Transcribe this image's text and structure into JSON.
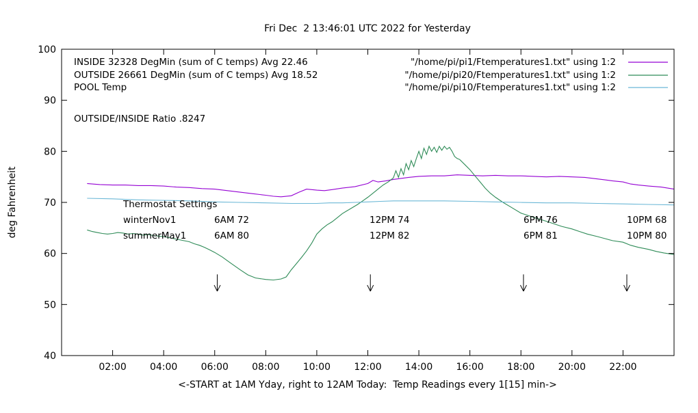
{
  "title": "Fri Dec  2 13:46:01 UTC 2022 for Yesterday",
  "legend": {
    "rows": [
      {
        "label": "INSIDE 32328 DegMin (sum of C temps) Avg 22.46",
        "file": "\"/home/pi/pi1/Ftemperatures1.txt\" using 1:2",
        "color": "#9400d3"
      },
      {
        "label": "OUTSIDE 26661 DegMin (sum of C temps) Avg 18.52",
        "file": "\"/home/pi/pi20/Ftemperatures1.txt\" using 1:2",
        "color": "#2e8b57"
      },
      {
        "label": "POOL Temp",
        "file": "\"/home/pi/pi10/Ftemperatures1.txt\" using 1:2",
        "color": "#6ab7d6"
      }
    ]
  },
  "ratio_text": "OUTSIDE/INSIDE Ratio .8247",
  "thermostat": {
    "title": "Thermostat Settings",
    "rows": [
      {
        "label": "winterNov1",
        "cols": [
          "6AM 72",
          "12PM 74",
          "6PM 76",
          "10PM 68"
        ]
      },
      {
        "label": "summerMay1",
        "cols": [
          "6AM 80",
          "12PM 82",
          "6PM 81",
          "10PM 80"
        ]
      }
    ]
  },
  "axes": {
    "y_label": "deg Fahrenheit",
    "x_label": "<-START at 1AM Yday, right to 12AM Today:  Temp Readings every 1[15] min->",
    "y_ticks": [
      40,
      50,
      60,
      70,
      80,
      90,
      100
    ],
    "x_ticks": [
      {
        "label": "02:00",
        "hour": 2
      },
      {
        "label": "04:00",
        "hour": 4
      },
      {
        "label": "06:00",
        "hour": 6
      },
      {
        "label": "08:00",
        "hour": 8
      },
      {
        "label": "10:00",
        "hour": 10
      },
      {
        "label": "12:00",
        "hour": 12
      },
      {
        "label": "14:00",
        "hour": 14
      },
      {
        "label": "16:00",
        "hour": 16
      },
      {
        "label": "18:00",
        "hour": 18
      },
      {
        "label": "20:00",
        "hour": 20
      },
      {
        "label": "22:00",
        "hour": 22
      }
    ]
  },
  "chart_data": {
    "type": "line",
    "title": "Fri Dec  2 13:46:01 UTC 2022 for Yesterday",
    "xlabel": "<-START at 1AM Yday, right to 12AM Today:  Temp Readings every 1[15] min->",
    "ylabel": "deg Fahrenheit",
    "x_unit": "hour of day (1AM yesterday to 12AM today)",
    "xlim": [
      0,
      24
    ],
    "ylim": [
      40,
      100
    ],
    "grid": false,
    "legend_position": "top-left-inside",
    "arrow_hours": [
      6.1,
      12.1,
      18.1,
      22.15
    ],
    "arrow_y_top_deg": 55.9,
    "arrow_y_tip_deg": 52.6,
    "series": [
      {
        "name": "INSIDE",
        "color": "#9400d3",
        "points": [
          [
            1,
            73.7
          ],
          [
            1.5,
            73.5
          ],
          [
            2,
            73.4
          ],
          [
            2.5,
            73.4
          ],
          [
            3,
            73.3
          ],
          [
            3.5,
            73.3
          ],
          [
            4,
            73.2
          ],
          [
            4.5,
            73
          ],
          [
            5,
            72.9
          ],
          [
            5.5,
            72.7
          ],
          [
            6,
            72.6
          ],
          [
            6.5,
            72.3
          ],
          [
            7,
            72
          ],
          [
            7.5,
            71.7
          ],
          [
            8,
            71.4
          ],
          [
            8.3,
            71.2
          ],
          [
            8.6,
            71.1
          ],
          [
            9,
            71.3
          ],
          [
            9.3,
            72
          ],
          [
            9.6,
            72.6
          ],
          [
            10,
            72.4
          ],
          [
            10.3,
            72.3
          ],
          [
            10.6,
            72.5
          ],
          [
            11,
            72.8
          ],
          [
            11.5,
            73.1
          ],
          [
            12,
            73.7
          ],
          [
            12.2,
            74.3
          ],
          [
            12.4,
            74
          ],
          [
            12.7,
            74.2
          ],
          [
            13,
            74.5
          ],
          [
            13.3,
            74.7
          ],
          [
            13.6,
            74.9
          ],
          [
            14,
            75.1
          ],
          [
            14.5,
            75.2
          ],
          [
            15,
            75.2
          ],
          [
            15.5,
            75.4
          ],
          [
            16,
            75.3
          ],
          [
            16.5,
            75.2
          ],
          [
            17,
            75.3
          ],
          [
            17.5,
            75.2
          ],
          [
            18,
            75.2
          ],
          [
            18.5,
            75.1
          ],
          [
            19,
            75
          ],
          [
            19.5,
            75.1
          ],
          [
            20,
            75
          ],
          [
            20.5,
            74.9
          ],
          [
            21,
            74.6
          ],
          [
            21.3,
            74.4
          ],
          [
            21.6,
            74.2
          ],
          [
            22,
            74
          ],
          [
            22.3,
            73.6
          ],
          [
            22.6,
            73.4
          ],
          [
            23,
            73.2
          ],
          [
            23.5,
            73
          ],
          [
            24,
            72.6
          ]
        ]
      },
      {
        "name": "OUTSIDE",
        "color": "#2e8b57",
        "points": [
          [
            1,
            64.6
          ],
          [
            1.2,
            64.3
          ],
          [
            1.4,
            64.1
          ],
          [
            1.6,
            63.9
          ],
          [
            1.8,
            63.8
          ],
          [
            2,
            63.9
          ],
          [
            2.2,
            64.1
          ],
          [
            2.4,
            64
          ],
          [
            2.6,
            63.8
          ],
          [
            2.8,
            63.9
          ],
          [
            3,
            63.8
          ],
          [
            3.2,
            63.6
          ],
          [
            3.4,
            63.7
          ],
          [
            3.6,
            63.5
          ],
          [
            3.8,
            63.4
          ],
          [
            4,
            63.3
          ],
          [
            4.2,
            63.1
          ],
          [
            4.4,
            62.9
          ],
          [
            4.6,
            62.7
          ],
          [
            4.8,
            62.5
          ],
          [
            5,
            62.3
          ],
          [
            5.2,
            61.9
          ],
          [
            5.4,
            61.6
          ],
          [
            5.6,
            61.2
          ],
          [
            5.8,
            60.7
          ],
          [
            6,
            60.2
          ],
          [
            6.3,
            59.3
          ],
          [
            6.6,
            58.2
          ],
          [
            7,
            56.8
          ],
          [
            7.3,
            55.8
          ],
          [
            7.6,
            55.2
          ],
          [
            8,
            54.9
          ],
          [
            8.3,
            54.8
          ],
          [
            8.6,
            55
          ],
          [
            8.8,
            55.4
          ],
          [
            9,
            56.8
          ],
          [
            9.2,
            58
          ],
          [
            9.4,
            59.2
          ],
          [
            9.6,
            60.5
          ],
          [
            9.8,
            62
          ],
          [
            10,
            63.8
          ],
          [
            10.2,
            64.8
          ],
          [
            10.4,
            65.6
          ],
          [
            10.6,
            66.2
          ],
          [
            10.8,
            67
          ],
          [
            11,
            67.8
          ],
          [
            11.2,
            68.4
          ],
          [
            11.4,
            69
          ],
          [
            11.6,
            69.6
          ],
          [
            11.8,
            70.3
          ],
          [
            12,
            71
          ],
          [
            12.2,
            71.8
          ],
          [
            12.4,
            72.6
          ],
          [
            12.6,
            73.4
          ],
          [
            12.8,
            74
          ],
          [
            13,
            74.8
          ],
          [
            13.1,
            76.2
          ],
          [
            13.2,
            74.9
          ],
          [
            13.3,
            76.6
          ],
          [
            13.4,
            75.4
          ],
          [
            13.5,
            77.6
          ],
          [
            13.6,
            76.4
          ],
          [
            13.7,
            78.2
          ],
          [
            13.8,
            77
          ],
          [
            13.9,
            78.6
          ],
          [
            14,
            80
          ],
          [
            14.1,
            78.6
          ],
          [
            14.2,
            80.6
          ],
          [
            14.3,
            79.4
          ],
          [
            14.4,
            81
          ],
          [
            14.5,
            80
          ],
          [
            14.6,
            80.8
          ],
          [
            14.7,
            79.8
          ],
          [
            14.8,
            81
          ],
          [
            14.9,
            80.2
          ],
          [
            15,
            81
          ],
          [
            15.1,
            80.4
          ],
          [
            15.2,
            80.8
          ],
          [
            15.3,
            80
          ],
          [
            15.4,
            79
          ],
          [
            15.5,
            78.6
          ],
          [
            15.6,
            78.4
          ],
          [
            15.8,
            77.4
          ],
          [
            16,
            76.4
          ],
          [
            16.2,
            75.2
          ],
          [
            16.4,
            74
          ],
          [
            16.6,
            72.8
          ],
          [
            16.8,
            71.8
          ],
          [
            17,
            71
          ],
          [
            17.3,
            70
          ],
          [
            17.6,
            69.1
          ],
          [
            18,
            67.9
          ],
          [
            18.3,
            67.4
          ],
          [
            18.6,
            66.9
          ],
          [
            19,
            66.3
          ],
          [
            19.3,
            65.8
          ],
          [
            19.6,
            65.3
          ],
          [
            20,
            64.8
          ],
          [
            20.3,
            64.3
          ],
          [
            20.6,
            63.8
          ],
          [
            21,
            63.3
          ],
          [
            21.3,
            62.9
          ],
          [
            21.6,
            62.5
          ],
          [
            22,
            62.2
          ],
          [
            22.3,
            61.6
          ],
          [
            22.6,
            61.2
          ],
          [
            23,
            60.8
          ],
          [
            23.3,
            60.4
          ],
          [
            23.6,
            60.1
          ],
          [
            24,
            59.8
          ]
        ]
      },
      {
        "name": "POOL",
        "color": "#6ab7d6",
        "points": [
          [
            1,
            70.8
          ],
          [
            2,
            70.7
          ],
          [
            3,
            70.5
          ],
          [
            4,
            70.4
          ],
          [
            5,
            70.3
          ],
          [
            6,
            70.1
          ],
          [
            7,
            70
          ],
          [
            8,
            69.9
          ],
          [
            9,
            69.8
          ],
          [
            10,
            69.8
          ],
          [
            10.5,
            69.9
          ],
          [
            11,
            69.9
          ],
          [
            11.5,
            70
          ],
          [
            12,
            70.1
          ],
          [
            12.5,
            70.2
          ],
          [
            13,
            70.3
          ],
          [
            14,
            70.3
          ],
          [
            15,
            70.3
          ],
          [
            16,
            70.2
          ],
          [
            17,
            70.1
          ],
          [
            18,
            70
          ],
          [
            19,
            69.9
          ],
          [
            20,
            69.9
          ],
          [
            21,
            69.8
          ],
          [
            22,
            69.7
          ],
          [
            23,
            69.6
          ],
          [
            24,
            69.5
          ]
        ]
      }
    ]
  }
}
